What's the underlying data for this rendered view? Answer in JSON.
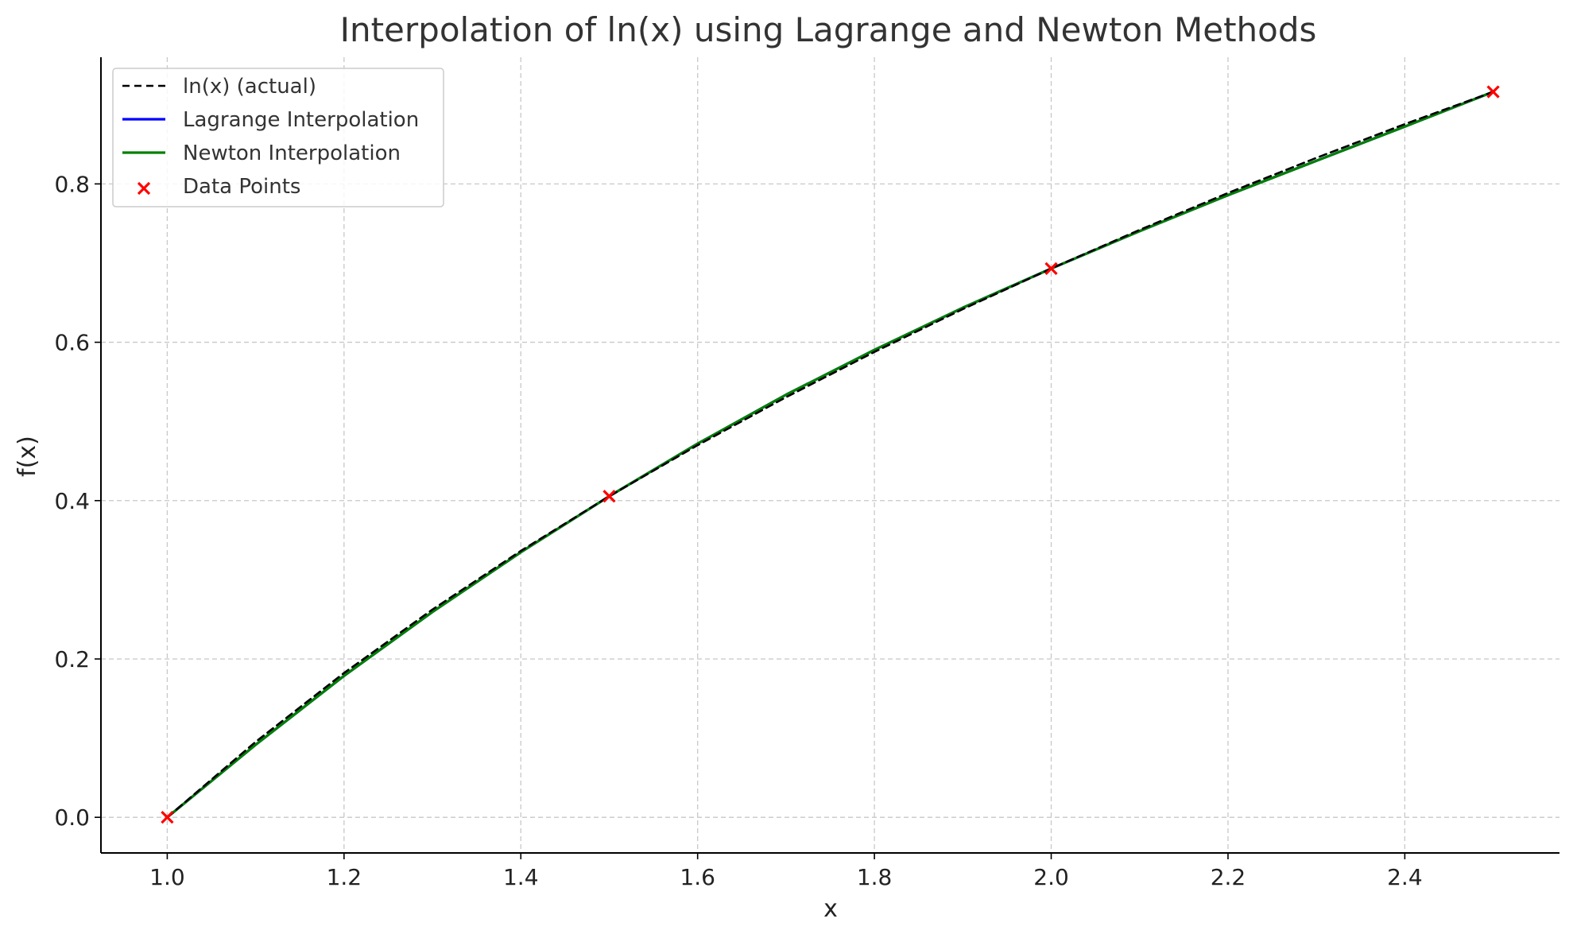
{
  "chart_data": {
    "type": "line",
    "title": "Interpolation of ln(x) using Lagrange and Newton Methods",
    "xlabel": "x",
    "ylabel": "f(x)",
    "xlim": [
      0.925,
      2.575
    ],
    "ylim": [
      -0.045,
      0.96
    ],
    "x_ticks": [
      1.0,
      1.2,
      1.4,
      1.6,
      1.8,
      2.0,
      2.2,
      2.4
    ],
    "x_tick_labels": [
      "1.0",
      "1.2",
      "1.4",
      "1.6",
      "1.8",
      "2.0",
      "2.2",
      "2.4"
    ],
    "y_ticks": [
      0.0,
      0.2,
      0.4,
      0.6,
      0.8
    ],
    "y_tick_labels": [
      "0.0",
      "0.2",
      "0.4",
      "0.6",
      "0.8"
    ],
    "grid": true,
    "legend_position": "top-left",
    "series": [
      {
        "name": "ln(x) (actual)",
        "style": "dashed",
        "color": "#000000",
        "x": [
          1.0,
          1.1,
          1.2,
          1.3,
          1.4,
          1.5,
          1.6,
          1.7,
          1.8,
          1.9,
          2.0,
          2.1,
          2.2,
          2.3,
          2.4,
          2.5
        ],
        "y": [
          0.0,
          0.0953,
          0.1823,
          0.2624,
          0.3365,
          0.4055,
          0.47,
          0.5306,
          0.5878,
          0.6419,
          0.6931,
          0.7419,
          0.7885,
          0.8329,
          0.8755,
          0.9163
        ]
      },
      {
        "name": "Lagrange Interpolation",
        "style": "solid",
        "color": "#0000ff",
        "x": [
          1.0,
          1.1,
          1.2,
          1.3,
          1.4,
          1.5,
          1.6,
          1.7,
          1.8,
          1.9,
          2.0,
          2.1,
          2.2,
          2.3,
          2.4,
          2.5
        ],
        "y": [
          0.0,
          0.0917,
          0.1787,
          0.2594,
          0.3348,
          0.4055,
          0.4719,
          0.5337,
          0.5903,
          0.6436,
          0.6931,
          0.7404,
          0.7858,
          0.8292,
          0.8724,
          0.9163
        ]
      },
      {
        "name": "Newton Interpolation",
        "style": "solid",
        "color": "#008000",
        "x": [
          1.0,
          1.1,
          1.2,
          1.3,
          1.4,
          1.5,
          1.6,
          1.7,
          1.8,
          1.9,
          2.0,
          2.1,
          2.2,
          2.3,
          2.4,
          2.5
        ],
        "y": [
          0.0,
          0.0917,
          0.1787,
          0.2594,
          0.3348,
          0.4055,
          0.4719,
          0.5337,
          0.5903,
          0.6436,
          0.6931,
          0.7404,
          0.7858,
          0.8292,
          0.8724,
          0.9163
        ]
      }
    ],
    "scatter": {
      "name": "Data Points",
      "marker": "x",
      "color": "#ff0000",
      "x": [
        1.0,
        1.5,
        2.0,
        2.5
      ],
      "y": [
        0.0,
        0.4055,
        0.6931,
        0.9163
      ]
    }
  }
}
